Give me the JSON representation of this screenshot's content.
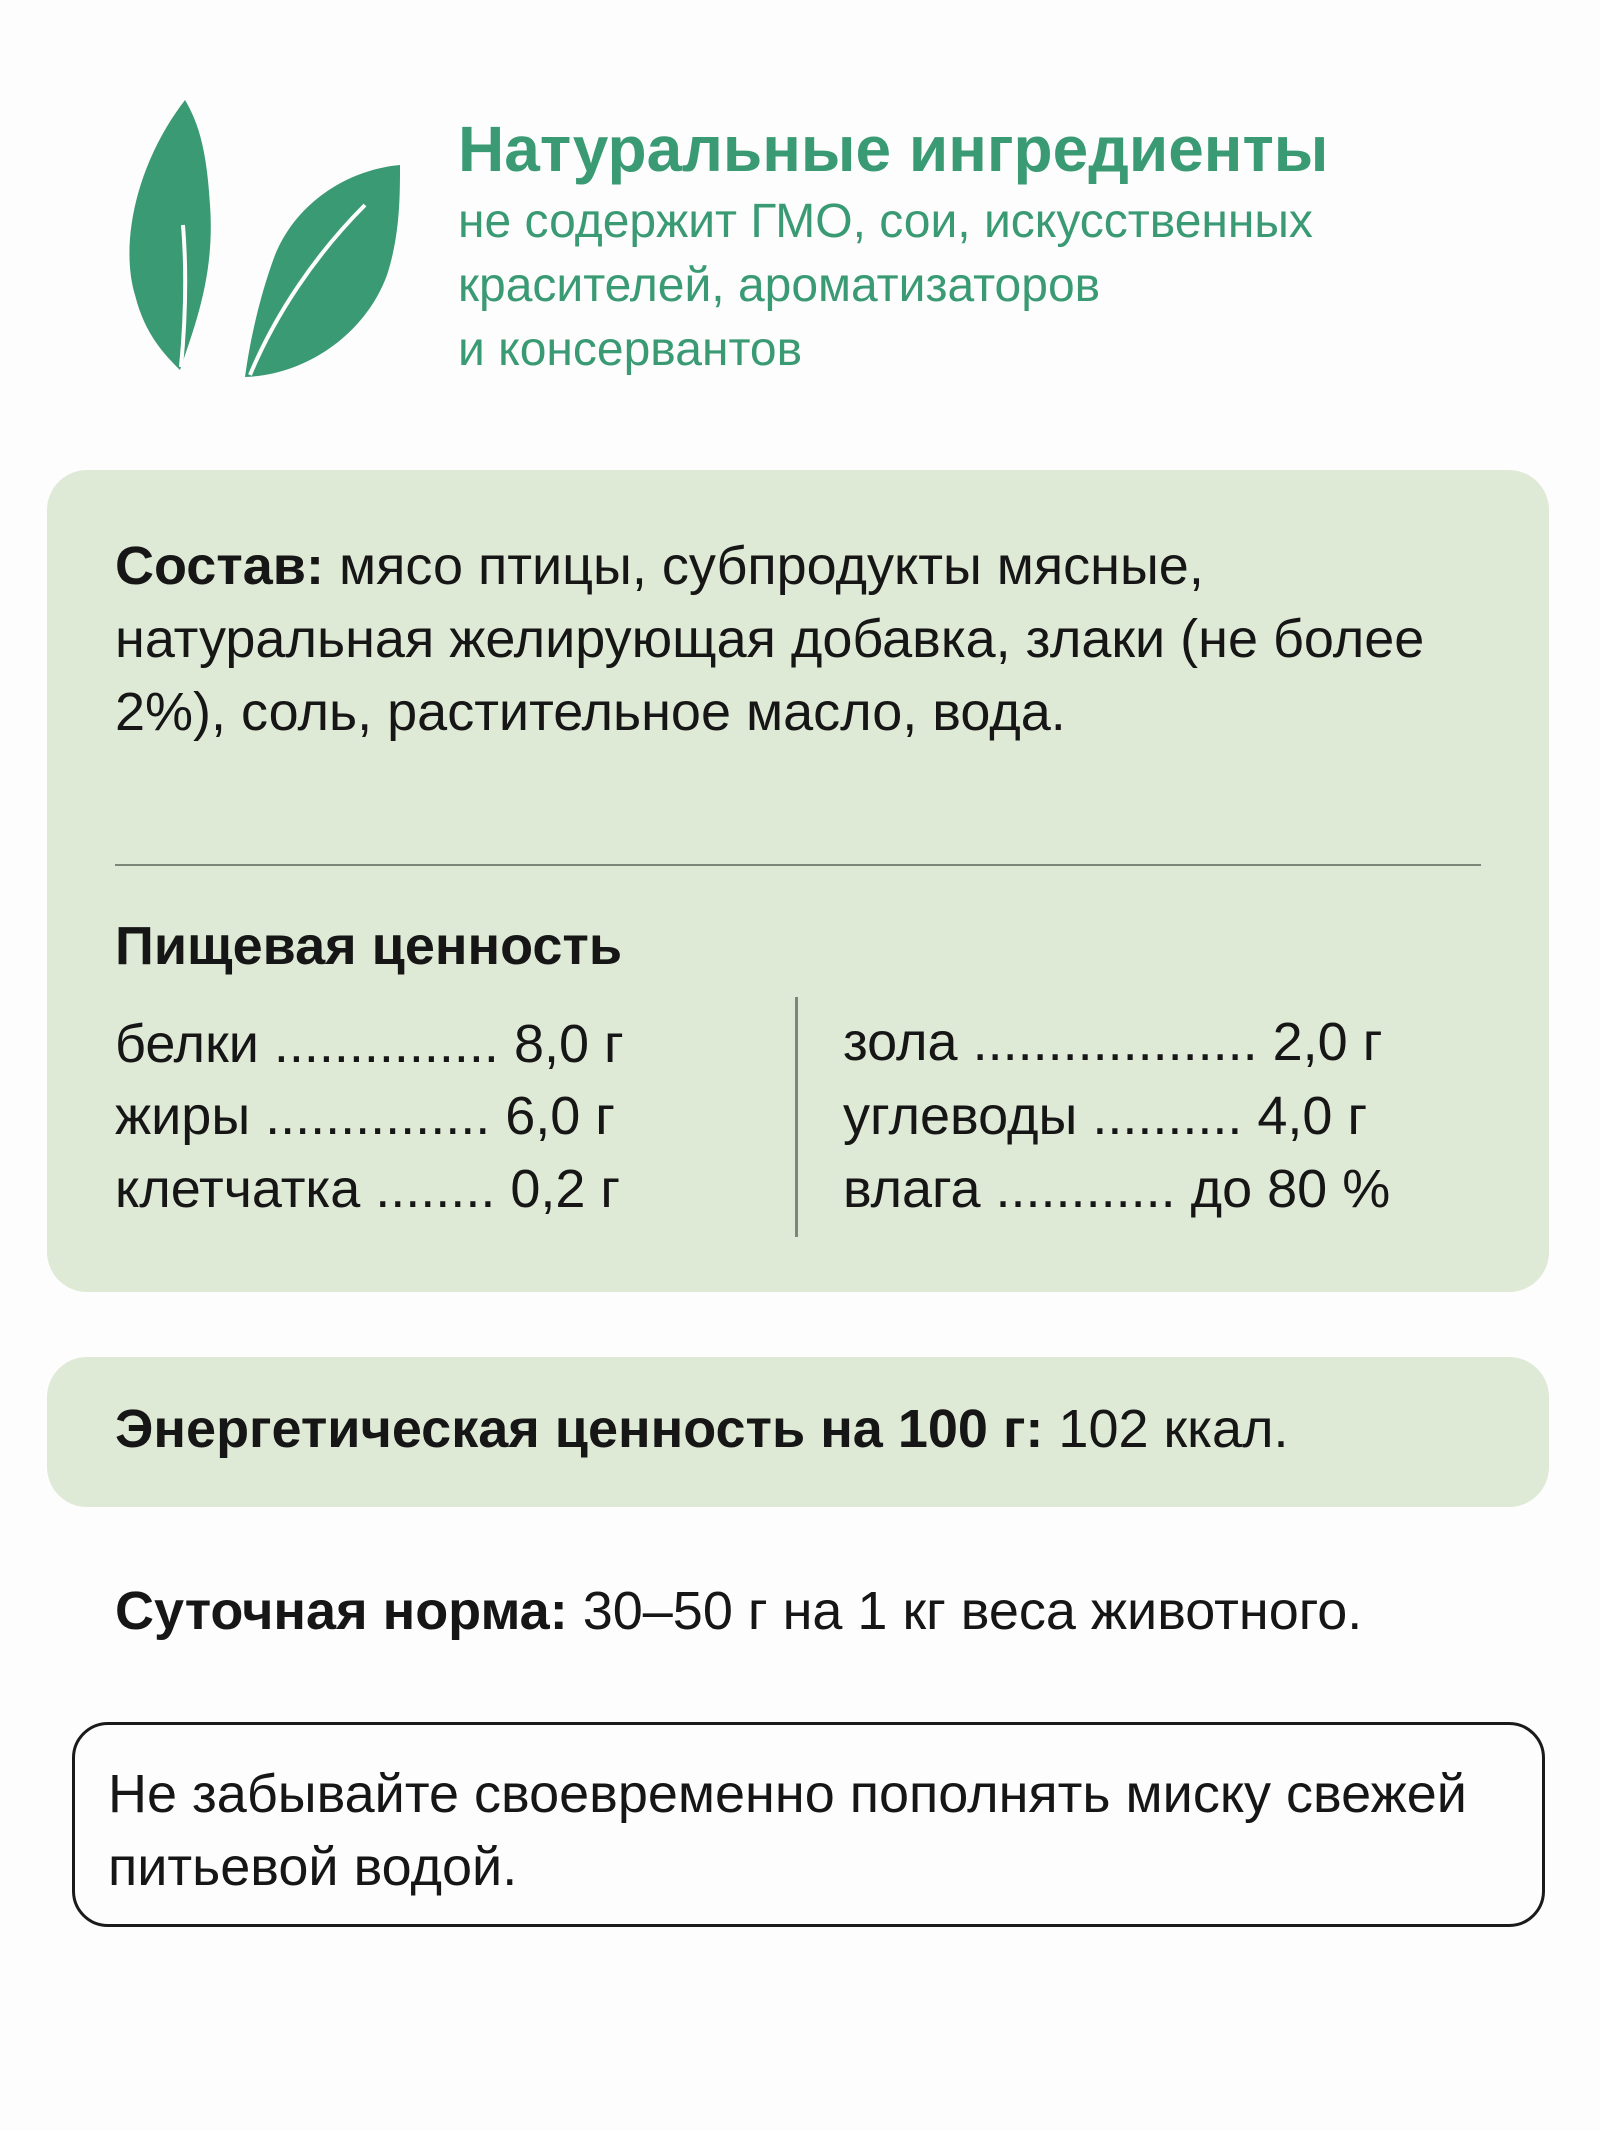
{
  "header": {
    "icon": "leaves-icon",
    "title": "Натуральные ингредиенты",
    "subtitle_lines": [
      "не содержит ГМО, сои, искусственных",
      "красителей, ароматизаторов",
      "и консервантов"
    ]
  },
  "composition": {
    "label": "Состав:",
    "text": " мясо птицы, субпродукты мясные, натуральная желирующая добавка, злаки (не более 2%), соль, растительное масло, вода."
  },
  "nutrition": {
    "title": "Пищевая ценность",
    "left": [
      {
        "name": "белки",
        "dots": "...............",
        "value": "8,0 г"
      },
      {
        "name": "жиры",
        "dots": "...............",
        "value": "6,0 г"
      },
      {
        "name": "клетчатка",
        "dots": "........",
        "value": "0,2 г"
      }
    ],
    "right": [
      {
        "name": "зола",
        "dots": "...................",
        "value": "2,0 г"
      },
      {
        "name": "углеводы",
        "dots": "..........",
        "value": "4,0 г"
      },
      {
        "name": "влага",
        "dots": "............",
        "value": "до 80 %"
      }
    ]
  },
  "energy": {
    "label": "Энергетическая ценность на 100 г:",
    "value": " 102 ккал."
  },
  "daily_norm": {
    "label": "Суточная норма:",
    "value": " 30–50 г на 1 кг веса животного."
  },
  "note": {
    "text": "Не забывайте своевременно пополнять миску свежей питьевой водой."
  },
  "colors": {
    "accent": "#3a9a74",
    "card": "#dfead6",
    "text": "#161616"
  }
}
